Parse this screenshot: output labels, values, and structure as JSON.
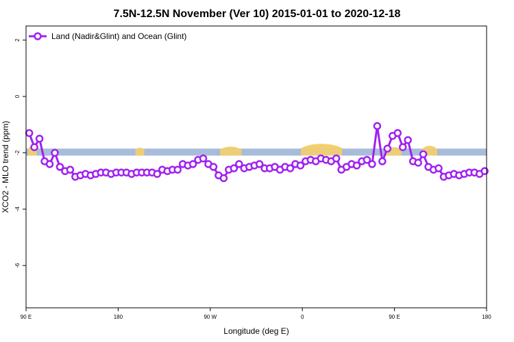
{
  "chart_data": {
    "type": "line",
    "title": "7.5N-12.5N November (Ver 10)   2015-01-01 to 2020-12-18",
    "xlabel": "Longitude (deg E)",
    "ylabel": "XCO2 - MLO trend (ppm)",
    "xlim": [
      90,
      450
    ],
    "ylim": [
      -7.5,
      2.5
    ],
    "x_ticks": [
      {
        "value": 90,
        "label": "90 E"
      },
      {
        "value": 162,
        "label": "180"
      },
      {
        "value": 234,
        "label": "90 W"
      },
      {
        "value": 306,
        "label": "0"
      },
      {
        "value": 378,
        "label": "90 E"
      },
      {
        "value": 450,
        "label": "180"
      }
    ],
    "y_ticks": [
      {
        "value": 2,
        "label": "2"
      },
      {
        "value": 0,
        "label": "0"
      },
      {
        "value": -2,
        "label": "-2"
      },
      {
        "value": -4,
        "label": "-4"
      },
      {
        "value": -6,
        "label": "-6"
      }
    ],
    "grid": false,
    "legend_position": "top-left",
    "band": {
      "y_min": -2.1,
      "y_max": -1.85,
      "color": "#a3b8d9"
    },
    "land_color": "#f4cf6e",
    "land": [
      {
        "x": [
          90,
          100
        ],
        "peak": -1.75
      },
      {
        "x": [
          174,
          184
        ],
        "peak": -1.82
      },
      {
        "x": [
          238,
          262
        ],
        "peak": -1.78
      },
      {
        "x": [
          298,
          344
        ],
        "peak": -1.68
      },
      {
        "x": [
          369,
          386
        ],
        "peak": -1.8
      },
      {
        "x": [
          397,
          414
        ],
        "peak": -1.75
      }
    ],
    "series": [
      {
        "name": "Land (Nadir&Glint) and Ocean (Glint)",
        "color": "#a020f0",
        "x": [
          92.5,
          96.5,
          100.5,
          104.5,
          108.5,
          112.5,
          116.5,
          120.5,
          124.5,
          128.5,
          132.5,
          136.5,
          140.5,
          144.5,
          148.5,
          152.5,
          156.5,
          160.5,
          164.5,
          168.5,
          172.5,
          176.5,
          180.5,
          184.5,
          188.5,
          192.5,
          196.5,
          200.5,
          204.5,
          208.5,
          212.5,
          216.5,
          220.5,
          224.5,
          228.5,
          232.5,
          236.5,
          240.5,
          244.5,
          248.5,
          252.5,
          256.5,
          260.5,
          264.5,
          268.5,
          272.5,
          276.5,
          280.5,
          284.5,
          288.5,
          292.5,
          296.5,
          300.5,
          304.5,
          308.5,
          312.5,
          316.5,
          320.5,
          324.5,
          328.5,
          332.5,
          336.5,
          340.5,
          344.5,
          348.5,
          352.5,
          356.5,
          360.5,
          364.5,
          368.5,
          372.5,
          376.5,
          380.5,
          384.5,
          388.5,
          392.5,
          396.5,
          400.5,
          404.5,
          408.5,
          412.5,
          416.5,
          420.5,
          424.5,
          428.5,
          432.5,
          436.5,
          440.5,
          444.5,
          448.5
        ],
        "values": [
          -1.3,
          -1.8,
          -1.5,
          -2.3,
          -2.4,
          -2.0,
          -2.5,
          -2.65,
          -2.6,
          -2.85,
          -2.8,
          -2.75,
          -2.8,
          -2.75,
          -2.7,
          -2.7,
          -2.75,
          -2.7,
          -2.7,
          -2.7,
          -2.75,
          -2.7,
          -2.7,
          -2.7,
          -2.7,
          -2.75,
          -2.6,
          -2.65,
          -2.6,
          -2.6,
          -2.4,
          -2.45,
          -2.4,
          -2.25,
          -2.2,
          -2.4,
          -2.5,
          -2.8,
          -2.9,
          -2.6,
          -2.55,
          -2.4,
          -2.55,
          -2.5,
          -2.45,
          -2.4,
          -2.55,
          -2.55,
          -2.5,
          -2.6,
          -2.5,
          -2.55,
          -2.4,
          -2.45,
          -2.3,
          -2.25,
          -2.3,
          -2.2,
          -2.25,
          -2.3,
          -2.2,
          -2.6,
          -2.5,
          -2.4,
          -2.45,
          -2.3,
          -2.25,
          -2.4,
          -1.05,
          -2.3,
          -1.85,
          -1.4,
          -1.3,
          -1.8,
          -1.55,
          -2.3,
          -2.35,
          -2.05,
          -2.5,
          -2.6,
          -2.55,
          -2.85,
          -2.8,
          -2.75,
          -2.8,
          -2.75,
          -2.7,
          -2.7,
          -2.75,
          -2.65
        ]
      }
    ]
  }
}
